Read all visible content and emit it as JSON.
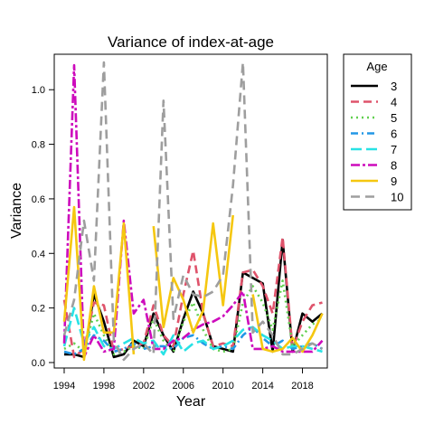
{
  "chart_data": {
    "type": "line",
    "title": "Variance of index-at-age",
    "xlabel": "Year",
    "ylabel": "Variance",
    "xlim": [
      1993,
      2020.5
    ],
    "ylim": [
      -0.02,
      1.13
    ],
    "x_ticks": [
      1994,
      1998,
      2002,
      2006,
      2010,
      2014,
      2018
    ],
    "y_ticks": [
      0.0,
      0.2,
      0.4,
      0.6,
      0.8,
      1.0
    ],
    "y_tick_labels": [
      "0.0",
      "0.2",
      "0.4",
      "0.6",
      "0.8",
      "1.0"
    ],
    "grid": false,
    "legend": {
      "title": "Age",
      "position": "right"
    },
    "x": [
      1994,
      1995,
      1996,
      1997,
      1998,
      1999,
      2000,
      2001,
      2002,
      2003,
      2004,
      2005,
      2006,
      2007,
      2008,
      2009,
      2010,
      2011,
      2012,
      2013,
      2014,
      2015,
      2016,
      2017,
      2018,
      2019,
      2020
    ],
    "series": [
      {
        "name": "3",
        "color": "#000000",
        "dash": "",
        "width": 2.6,
        "values": [
          0.03,
          0.03,
          0.02,
          0.25,
          0.15,
          0.02,
          0.03,
          0.08,
          0.06,
          0.18,
          0.1,
          0.04,
          0.16,
          0.26,
          0.18,
          0.06,
          0.05,
          0.04,
          0.33,
          0.31,
          0.29,
          0.04,
          0.45,
          0.04,
          0.18,
          0.15,
          0.18
        ]
      },
      {
        "name": "4",
        "color": "#df536b",
        "dash": "9,5",
        "width": 2.6,
        "values": [
          0.23,
          0.02,
          0.05,
          0.22,
          0.21,
          0.04,
          0.05,
          0.06,
          0.07,
          0.21,
          0.1,
          0.06,
          0.25,
          0.41,
          0.18,
          0.06,
          0.07,
          0.06,
          0.33,
          0.34,
          0.28,
          0.18,
          0.46,
          0.05,
          0.15,
          0.21,
          0.22
        ]
      },
      {
        "name": "5",
        "color": "#61d04f",
        "dash": "2,4",
        "width": 2.4,
        "values": [
          0.05,
          0.07,
          0.04,
          0.18,
          0.1,
          0.03,
          0.04,
          0.06,
          0.05,
          0.16,
          0.08,
          0.04,
          0.15,
          0.22,
          0.12,
          0.05,
          0.04,
          0.05,
          0.22,
          0.28,
          0.22,
          0.12,
          0.3,
          0.06,
          0.1,
          0.14,
          0.16
        ]
      },
      {
        "name": "6",
        "color": "#2297e6",
        "dash": "8,4,2,4",
        "width": 2.4,
        "values": [
          0.04,
          0.03,
          0.05,
          0.1,
          0.08,
          0.04,
          0.05,
          0.07,
          0.05,
          0.06,
          0.06,
          0.05,
          0.09,
          0.1,
          0.07,
          0.05,
          0.06,
          0.05,
          0.1,
          0.13,
          0.09,
          0.06,
          0.08,
          0.05,
          0.06,
          0.07,
          0.05
        ]
      },
      {
        "name": "7",
        "color": "#28e2e5",
        "dash": "12,5",
        "width": 2.6,
        "values": [
          0.06,
          0.2,
          0.07,
          0.13,
          0.06,
          0.05,
          0.07,
          0.09,
          0.07,
          0.08,
          0.03,
          0.1,
          0.04,
          0.07,
          0.08,
          0.05,
          0.06,
          0.08,
          0.12,
          0.13,
          0.1,
          0.08,
          0.05,
          0.06,
          0.06,
          0.05,
          0.04
        ]
      },
      {
        "name": "8",
        "color": "#cd0bbc",
        "dash": "10,3,3,3",
        "width": 2.6,
        "values": [
          0.07,
          1.09,
          0.02,
          0.1,
          0.04,
          0.05,
          0.52,
          0.18,
          0.23,
          0.05,
          0.05,
          0.08,
          0.09,
          0.12,
          0.14,
          0.15,
          0.17,
          0.21,
          0.26,
          0.05,
          0.05,
          0.06,
          0.04,
          0.04,
          0.04,
          0.04,
          0.08
        ]
      },
      {
        "name": "9",
        "color": "#f5c710",
        "dash": "",
        "width": 2.6,
        "values": [
          0.15,
          0.57,
          0.01,
          0.28,
          0.11,
          0.11,
          0.51,
          0.03,
          null,
          0.5,
          0.13,
          0.31,
          0.23,
          0.11,
          0.19,
          0.51,
          0.21,
          0.54,
          null,
          0.25,
          0.05,
          0.04,
          0.05,
          0.09,
          0.04,
          0.1,
          0.18
        ]
      },
      {
        "name": "10",
        "color": "#9e9e9e",
        "dash": "10,6",
        "width": 2.6,
        "values": [
          0.1,
          0.23,
          0.52,
          0.3,
          1.1,
          0.08,
          0.01,
          0.05,
          0.07,
          0.03,
          0.96,
          0.16,
          0.32,
          0.25,
          0.24,
          0.26,
          0.32,
          0.65,
          1.1,
          0.11,
          0.15,
          0.1,
          0.03,
          0.03,
          0.05,
          0.07,
          0.05
        ]
      }
    ]
  }
}
